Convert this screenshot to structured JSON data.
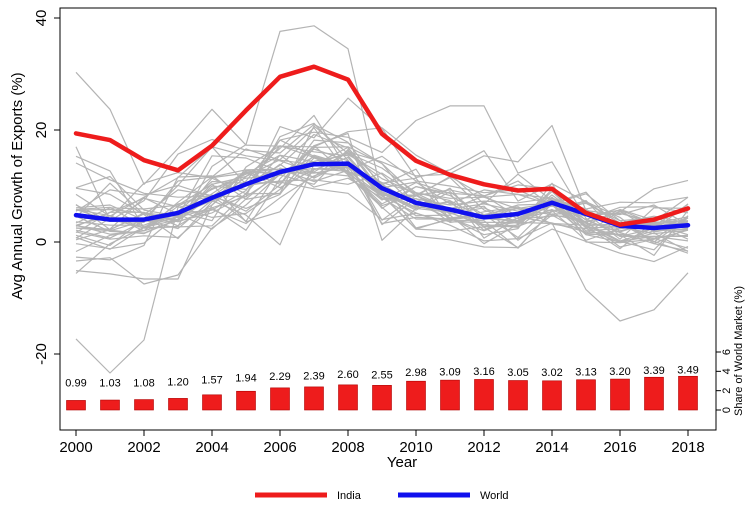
{
  "chart_data": {
    "type": "line",
    "xlabel": "Year",
    "ylabel": "Avg Annual Growth of Exports (%)",
    "y2label": "Share of World Market (%)",
    "xlim": [
      2000,
      2018
    ],
    "ylim": [
      -30,
      40
    ],
    "y2lim": [
      0,
      6
    ],
    "x_ticks": [
      "2000",
      "2002",
      "2004",
      "2006",
      "2008",
      "2010",
      "2012",
      "2014",
      "2016",
      "2018"
    ],
    "y_ticks": [
      "-20",
      "0",
      "20",
      "40"
    ],
    "y2_ticks": [
      "0",
      "2",
      "4",
      "6"
    ],
    "years": [
      2000,
      2001,
      2002,
      2003,
      2004,
      2005,
      2006,
      2007,
      2008,
      2009,
      2010,
      2011,
      2012,
      2013,
      2014,
      2015,
      2016,
      2017,
      2018
    ],
    "series": [
      {
        "name": "India",
        "color": "#ee1c1c",
        "values": [
          19.4,
          18.2,
          14.6,
          12.8,
          17.2,
          23.5,
          29.5,
          31.3,
          29.0,
          19.3,
          14.5,
          12.0,
          10.3,
          9.2,
          9.5,
          5.2,
          3.1,
          4.0,
          6.0
        ]
      },
      {
        "name": "World",
        "color": "#1010ee",
        "values": [
          4.8,
          4.0,
          4.0,
          5.2,
          7.9,
          10.3,
          12.5,
          13.9,
          14.0,
          9.6,
          7.0,
          5.8,
          4.4,
          5.0,
          7.0,
          5.0,
          2.9,
          2.5,
          3.0
        ]
      }
    ],
    "background_series_color": "#b4b4b4",
    "background_series": [
      [
        30.3,
        23.7,
        10.3,
        16.7,
        23.7,
        17.3,
        17.1,
        17.0,
        19.7,
        20.4,
        15.5,
        12.2,
        15.4,
        14.3,
        20.8,
        5.6,
        4.9,
        6.6,
        3.0
      ],
      [
        -17.3,
        -23.4,
        -17.5,
        6.2,
        7.4,
        12.5,
        13.0,
        12.5,
        16.1,
        14.3,
        11.8,
        12.1,
        6.8,
        12.1,
        7.4,
        4.0,
        6.2,
        6.3,
        5.2
      ],
      [
        3.6,
        3.0,
        3.0,
        5.4,
        3.8,
        13.4,
        17.2,
        15.1,
        12.4,
        7.5,
        10.6,
        8.7,
        8.3,
        4.5,
        3.4,
        -8.5,
        -14.1,
        -12.1,
        -5.5
      ],
      [
        9.6,
        8.5,
        4.9,
        0.6,
        7.2,
        10.9,
        18.2,
        19.6,
        18.7,
        16.0,
        21.7,
        24.3,
        24.3,
        12.3,
        14.3,
        4.2,
        1.0,
        2.4,
        4.3
      ],
      [
        15.3,
        12.7,
        2.5,
        2.8,
        13.5,
        17.4,
        37.6,
        38.6,
        34.5,
        8.4,
        8.3,
        9.3,
        8.0,
        5.9,
        4.9,
        3.6,
        5.4,
        9.5,
        11.0
      ],
      [
        14.1,
        11.1,
        8.7,
        8.0,
        8.2,
        8.1,
        20.6,
        18.6,
        25.7,
        20.3,
        11.5,
        12.9,
        16.3,
        7.3,
        10.4,
        7.2,
        4.4,
        -0.3,
        2.4
      ],
      [
        3.4,
        6.1,
        5.9,
        6.6,
        10.3,
        11.7,
        16.7,
        22.6,
        12.8,
        15.3,
        10.9,
        10.0,
        8.8,
        9.3,
        6.6,
        2.8,
        -1.2,
        3.7,
        8.0
      ],
      [
        6.1,
        6.6,
        3.9,
        2.4,
        7.5,
        10.2,
        17.1,
        16.1,
        15.4,
        8.4,
        8.2,
        11.7,
        8.2,
        10.2,
        9.5,
        1.5,
        2.0,
        3.3,
        4.5
      ],
      [
        -5.6,
        -0.3,
        2.6,
        4.0,
        11.4,
        8.6,
        8.7,
        15.0,
        12.7,
        8.3,
        8.4,
        11.5,
        5.7,
        3.6,
        5.8,
        3.0,
        5.8,
        3.9,
        5.8
      ],
      [
        17.0,
        3.8,
        7.4,
        15.7,
        18.3,
        16.4,
        15.9,
        21.0,
        17.8,
        9.7,
        10.7,
        6.8,
        9.3,
        8.5,
        6.6,
        1.3,
        0.0,
        2.5,
        3.7
      ],
      [
        0.8,
        -1.3,
        2.6,
        4.6,
        9.6,
        11.4,
        11.9,
        16.6,
        14.5,
        8.4,
        7.7,
        6.6,
        7.3,
        7.0,
        7.9,
        4.8,
        5.1,
        3.6,
        2.3
      ],
      [
        2.5,
        2.0,
        3.8,
        3.7,
        5.2,
        8.5,
        18.8,
        21.2,
        14.6,
        3.9,
        8.3,
        5.9,
        4.4,
        6.0,
        6.9,
        8.9,
        1.8,
        3.7,
        5.9
      ],
      [
        5.8,
        4.7,
        2.5,
        6.8,
        8.2,
        6.0,
        8.5,
        16.9,
        17.0,
        14.0,
        8.3,
        5.0,
        6.1,
        3.5,
        3.3,
        3.0,
        0.1,
        -1.4,
        4.7
      ],
      [
        4.4,
        10.5,
        4.9,
        9.3,
        8.3,
        3.7,
        13.2,
        11.6,
        16.4,
        8.8,
        4.7,
        4.8,
        -0.3,
        3.2,
        9.4,
        2.9,
        3.3,
        0.1,
        -2.0
      ],
      [
        0.7,
        4.2,
        10.5,
        12.4,
        11.5,
        12.3,
        12.5,
        12.3,
        13.3,
        10.5,
        11.4,
        3.7,
        7.1,
        4.1,
        4.6,
        4.7,
        5.7,
        3.3,
        0.5
      ],
      [
        9.7,
        11.7,
        5.7,
        4.6,
        15.4,
        15.0,
        12.6,
        13.1,
        12.6,
        10.3,
        6.8,
        4.3,
        1.3,
        2.4,
        10.5,
        0.0,
        -0.1,
        0.5,
        4.6
      ],
      [
        -3.4,
        -2.8,
        -7.5,
        -5.9,
        2.5,
        6.6,
        12.1,
        15.2,
        13.2,
        10.4,
        2.5,
        4.0,
        4.7,
        6.6,
        6.8,
        2.0,
        2.4,
        3.1,
        1.3
      ],
      [
        6.6,
        3.7,
        3.5,
        10.9,
        11.6,
        16.6,
        14.6,
        13.8,
        16.9,
        9.0,
        6.2,
        9.6,
        2.6,
        -1.0,
        5.5,
        7.4,
        1.0,
        1.0,
        1.0
      ],
      [
        8.5,
        4.6,
        8.0,
        11.5,
        17.0,
        10.3,
        13.7,
        19.2,
        16.8,
        10.2,
        13.0,
        3.9,
        3.8,
        -1.1,
        5.7,
        3.6,
        -0.9,
        0.5,
        2.1
      ],
      [
        -2.7,
        -3.2,
        -0.6,
        11.6,
        11.8,
        7.6,
        8.7,
        20.7,
        15.8,
        11.3,
        8.7,
        5.9,
        8.2,
        10.9,
        6.4,
        6.9,
        3.8,
        4.3,
        2.7
      ],
      [
        5.7,
        5.8,
        5.2,
        3.6,
        5.8,
        3.3,
        7.9,
        11.8,
        14.0,
        8.3,
        2.3,
        2.0,
        2.7,
        2.8,
        5.0,
        5.1,
        0.5,
        6.1,
        6.0
      ],
      [
        1.2,
        -0.6,
        4.1,
        10.1,
        17.0,
        15.4,
        14.5,
        12.4,
        11.8,
        6.2,
        1.0,
        0.4,
        -0.9,
        -1.0,
        2.3,
        0.1,
        -2.0,
        -3.5,
        -0.8
      ],
      [
        2.1,
        0.7,
        3.7,
        4.4,
        6.1,
        8.1,
        12.0,
        10.3,
        16.5,
        8.7,
        5.7,
        9.0,
        4.3,
        3.8,
        8.4,
        3.9,
        1.7,
        -0.3,
        -1.6
      ],
      [
        5.8,
        3.8,
        4.2,
        5.4,
        10.8,
        10.5,
        10.7,
        9.5,
        8.7,
        4.0,
        5.1,
        3.6,
        3.5,
        3.5,
        7.5,
        5.8,
        2.7,
        1.5,
        2.1
      ],
      [
        1.8,
        0.5,
        1.1,
        0.8,
        6.1,
        2.1,
        11.3,
        17.2,
        19.4,
        0.3,
        6.0,
        7.3,
        2.1,
        5.0,
        6.9,
        1.3,
        1.4,
        0.6,
        -1.1
      ],
      [
        -0.3,
        -1.2,
        -0.2,
        4.8,
        7.4,
        4.8,
        -0.5,
        13.9,
        15.9,
        13.2,
        8.8,
        7.4,
        4.2,
        3.7,
        8.0,
        2.5,
        2.7,
        3.1,
        2.5
      ],
      [
        2.8,
        5.3,
        5.3,
        2.9,
        6.6,
        11.7,
        14.7,
        20.4,
        12.2,
        8.2,
        5.2,
        3.0,
        0.2,
        0.6,
        3.4,
        1.8,
        1.3,
        -2.4,
        5.7
      ],
      [
        2.5,
        2.3,
        7.9,
        5.0,
        2.3,
        7.7,
        12.5,
        14.4,
        15.6,
        12.1,
        6.3,
        5.5,
        6.4,
        0.3,
        4.8,
        1.5,
        5.6,
        1.8,
        2.8
      ],
      [
        5.5,
        9.3,
        8.4,
        10.1,
        8.1,
        12.4,
        9.7,
        13.0,
        13.4,
        6.0,
        9.9,
        8.3,
        4.9,
        6.1,
        5.6,
        0.3,
        2.4,
        3.5,
        3.8
      ],
      [
        1.7,
        5.3,
        7.8,
        6.3,
        4.4,
        5.1,
        9.4,
        15.5,
        13.7,
        8.5,
        2.3,
        4.2,
        2.0,
        4.3,
        7.1,
        2.7,
        1.1,
        0.9,
        1.2
      ],
      [
        2.9,
        2.1,
        1.5,
        4.1,
        10.4,
        3.6,
        5.4,
        12.9,
        15.1,
        7.6,
        8.4,
        5.2,
        3.1,
        2.6,
        7.1,
        3.0,
        0.1,
        1.0,
        0.2
      ],
      [
        4.6,
        1.9,
        1.6,
        4.0,
        10.0,
        9.4,
        13.9,
        9.8,
        11.4,
        7.9,
        4.1,
        4.1,
        4.9,
        0.8,
        6.8,
        8.6,
        3.8,
        0.0,
        4.3
      ],
      [
        6.7,
        2.2,
        5.0,
        3.9,
        8.4,
        5.5,
        10.2,
        17.2,
        12.0,
        6.5,
        8.4,
        4.3,
        4.9,
        3.3,
        7.4,
        3.5,
        5.4,
        2.9,
        6.7
      ],
      [
        4.5,
        4.1,
        2.5,
        2.7,
        2.9,
        8.7,
        15.5,
        11.4,
        14.5,
        3.1,
        7.8,
        3.5,
        4.2,
        3.8,
        6.5,
        3.4,
        0.2,
        2.0,
        2.3
      ],
      [
        -1.7,
        1.2,
        2.0,
        7.1,
        11.6,
        12.9,
        13.0,
        10.8,
        12.8,
        3.3,
        4.4,
        4.1,
        5.4,
        6.3,
        3.2,
        2.4,
        -0.1,
        1.6,
        -1.7
      ],
      [
        5.8,
        6.2,
        2.7,
        5.1,
        5.7,
        9.2,
        18.2,
        15.3,
        13.5,
        8.8,
        6.0,
        5.3,
        2.8,
        3.5,
        9.0,
        3.3,
        2.6,
        3.6,
        3.3
      ],
      [
        0.4,
        2.2,
        5.2,
        4.5,
        8.6,
        12.6,
        10.3,
        18.2,
        17.7,
        14.0,
        6.5,
        7.1,
        2.8,
        3.0,
        7.8,
        5.1,
        3.2,
        3.2,
        3.3
      ],
      [
        3.0,
        4.7,
        2.0,
        3.8,
        8.2,
        10.1,
        10.9,
        11.1,
        10.3,
        12.3,
        8.3,
        5.9,
        6.8,
        5.5,
        6.4,
        7.2,
        3.3,
        2.1,
        6.8
      ],
      [
        3.0,
        1.4,
        2.0,
        6.4,
        9.4,
        12.1,
        15.5,
        14.3,
        12.6,
        6.8,
        9.9,
        8.7,
        0.7,
        4.3,
        5.4,
        7.0,
        3.4,
        4.6,
        3.4
      ],
      [
        -5.1,
        -5.7,
        -6.6,
        -6.6,
        6.6,
        12.8,
        12.1,
        13.6,
        13.5,
        10.6,
        8.8,
        7.8,
        8.0,
        8.5,
        7.8,
        5.9,
        7.1,
        7.0,
        8.0
      ]
    ],
    "bars": {
      "color": "#ee1c1c",
      "values": [
        0.99,
        1.03,
        1.08,
        1.2,
        1.57,
        1.94,
        2.29,
        2.39,
        2.6,
        2.55,
        2.98,
        3.09,
        3.16,
        3.05,
        3.02,
        3.13,
        3.2,
        3.39,
        3.49
      ],
      "labels": [
        "0.99",
        "1.03",
        "1.08",
        "1.20",
        "1.57",
        "1.94",
        "2.29",
        "2.39",
        "2.60",
        "2.55",
        "2.98",
        "3.09",
        "3.16",
        "3.05",
        "3.02",
        "3.13",
        "3.20",
        "3.39",
        "3.49"
      ]
    },
    "legend": {
      "position": "bottom-center",
      "entries": [
        "India",
        "World"
      ]
    },
    "grid": false
  }
}
